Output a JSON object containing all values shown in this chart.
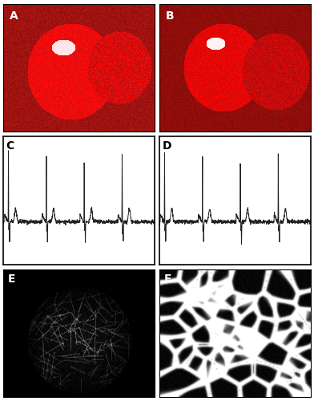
{
  "figure_size": [
    3.92,
    5.0
  ],
  "dpi": 100,
  "panel_labels": [
    "A",
    "B",
    "C",
    "D",
    "E",
    "F"
  ],
  "label_fontsize": 10,
  "background_color": "#ffffff",
  "border_color": "#000000",
  "ecg_color": "#222222",
  "ecg_bg": "#ffffff"
}
